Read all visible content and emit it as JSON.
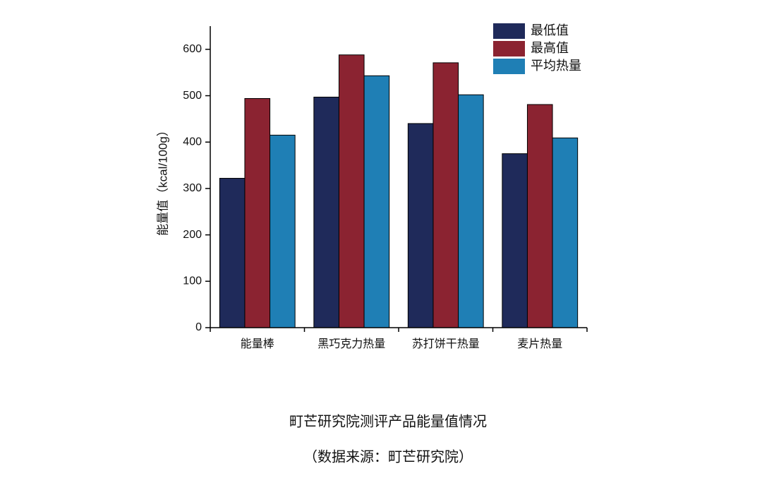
{
  "chart_data": {
    "type": "bar",
    "title": "町芒研究院测评产品能量值情况",
    "subtitle": "（数据来源：町芒研究院）",
    "y_label": "能量值（kcal/100g）",
    "categories": [
      "能量棒",
      "黑巧克力热量",
      "苏打饼干热量",
      "麦片热量"
    ],
    "series": [
      {
        "name": "最低值",
        "color": "#1f2a5a",
        "values": [
          322,
          497,
          440,
          375
        ]
      },
      {
        "name": "最高值",
        "color": "#8b2331",
        "values": [
          494,
          588,
          571,
          481
        ]
      },
      {
        "name": "平均热量",
        "color": "#1f7fb5",
        "values": [
          415,
          543,
          502,
          409
        ]
      }
    ],
    "ylim": [
      0,
      650
    ],
    "yticks": [
      0,
      100,
      200,
      300,
      400,
      500,
      600
    ],
    "legend": "top-right"
  }
}
